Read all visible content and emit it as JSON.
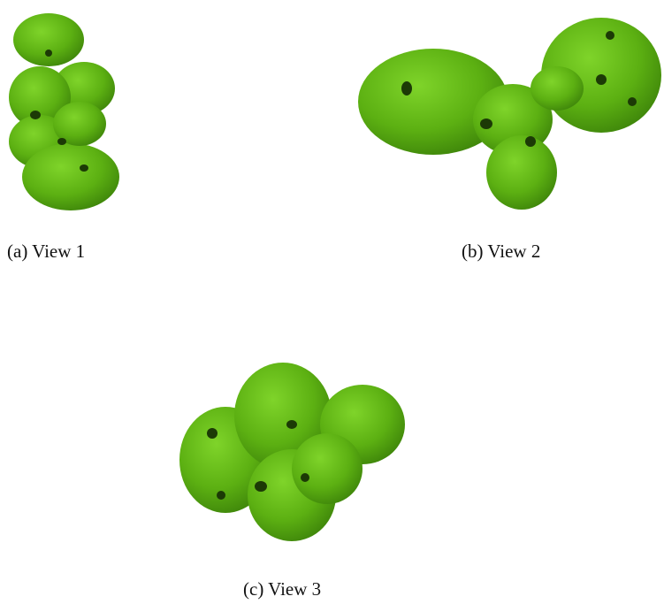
{
  "figure": {
    "subfigures": [
      {
        "caption": "(a) View 1"
      },
      {
        "caption": "(b) View 2"
      },
      {
        "caption": "(c) View 3"
      }
    ]
  }
}
